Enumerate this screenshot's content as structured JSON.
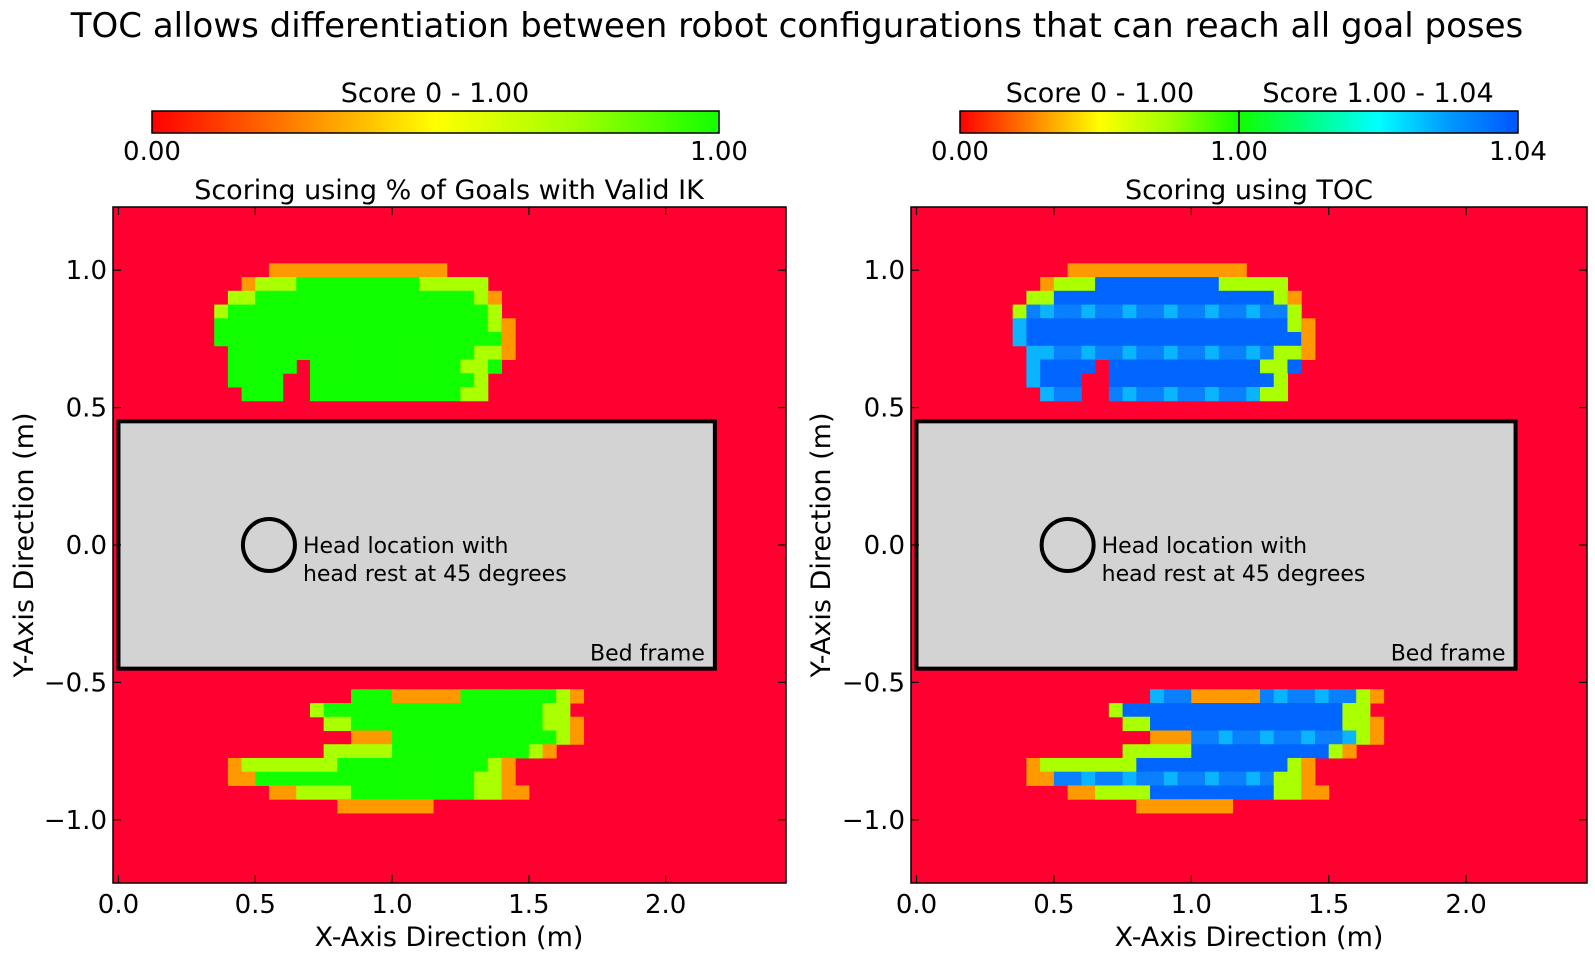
{
  "figure": {
    "suptitle": "TOC allows differentiation between robot configurations that can reach all goal poses"
  },
  "colors": {
    "background_low": "#ff0030",
    "bed": "#d3d3d3",
    "green": "#11ff00",
    "yellow_green": "#aaff00",
    "orange": "#ff9900",
    "blue_deep": "#0066ff",
    "blue": "#0a80ff",
    "light_blue": "#0ab4ff"
  },
  "chart_data": [
    {
      "type": "heatmap",
      "title": "Scoring using % of Goals with Valid IK",
      "xlabel": "X-Axis Direction (m)",
      "ylabel": "Y-Axis Direction (m)",
      "xlim": [
        -0.02,
        2.44
      ],
      "ylim": [
        -1.23,
        1.23
      ],
      "xticks": [
        0.0,
        0.5,
        1.0,
        1.5,
        2.0
      ],
      "xtick_labels": [
        "0.0",
        "0.5",
        "1.0",
        "1.5",
        "2.0"
      ],
      "yticks": [
        1.0,
        0.5,
        0.0,
        -0.5,
        -1.0
      ],
      "ytick_labels": [
        "1.0",
        "0.5",
        "0.0",
        "−0.5",
        "−1.0"
      ],
      "colorbar": {
        "segments": [
          {
            "label": "Score 0 - 1.00",
            "range": [
              0.0,
              1.0
            ],
            "colors": [
              "#ff0000",
              "#ff8000",
              "#ffff00",
              "#a0ff00",
              "#11ff00"
            ]
          }
        ],
        "tick_labels": [
          "0.00",
          "1.00"
        ],
        "placement": "top"
      },
      "annotations": {
        "head": [
          "Head location with",
          "head rest at 45 degrees"
        ],
        "bed": "Bed frame"
      },
      "head_circle": {
        "x": 0.55,
        "y": 0.0
      },
      "bed_rect": {
        "x": [
          0.0,
          2.18
        ],
        "y": [
          -0.45,
          0.45
        ]
      },
      "cells": {
        "upper": {
          "y": [
            1.0,
            0.55
          ],
          "x": [
            0.4,
            1.45
          ],
          "value": 1.0
        },
        "lower": {
          "y": [
            -0.55,
            -1.0
          ],
          "x": [
            0.4,
            1.6
          ],
          "value": 1.0
        }
      }
    },
    {
      "type": "heatmap",
      "title": "Scoring using TOC",
      "xlabel": "X-Axis Direction (m)",
      "ylabel": "Y-Axis Direction (m)",
      "xlim": [
        -0.02,
        2.44
      ],
      "ylim": [
        -1.23,
        1.23
      ],
      "xticks": [
        0.0,
        0.5,
        1.0,
        1.5,
        2.0
      ],
      "xtick_labels": [
        "0.0",
        "0.5",
        "1.0",
        "1.5",
        "2.0"
      ],
      "yticks": [
        1.0,
        0.5,
        0.0,
        -0.5,
        -1.0
      ],
      "ytick_labels": [
        "1.0",
        "0.5",
        "0.0",
        "−0.5",
        "−1.0"
      ],
      "colorbar": {
        "segments": [
          {
            "label": "Score 0 - 1.00",
            "range": [
              0.0,
              1.0
            ],
            "colors": [
              "#ff0000",
              "#ff8000",
              "#ffff00",
              "#a0ff00",
              "#11ff00"
            ]
          },
          {
            "label": "Score 1.00 - 1.04",
            "range": [
              1.0,
              1.04
            ],
            "colors": [
              "#11ff00",
              "#00ff80",
              "#00ffff",
              "#0099ff",
              "#0055ff"
            ]
          }
        ],
        "tick_labels": [
          "0.00",
          "1.00",
          "1.04"
        ],
        "placement": "top"
      },
      "annotations": {
        "head": [
          "Head location with",
          "head rest at 45 degrees"
        ],
        "bed": "Bed frame"
      },
      "head_circle": {
        "x": 0.55,
        "y": 0.0
      },
      "bed_rect": {
        "x": [
          0.0,
          2.18
        ],
        "y": [
          -0.45,
          0.45
        ]
      },
      "cells": {
        "upper": {
          "y": [
            1.0,
            0.55
          ],
          "x": [
            0.4,
            1.45
          ],
          "value": 1.03
        },
        "lower": {
          "y": [
            -0.55,
            -1.0
          ],
          "x": [
            0.4,
            1.6
          ],
          "value": 1.03
        }
      }
    }
  ]
}
